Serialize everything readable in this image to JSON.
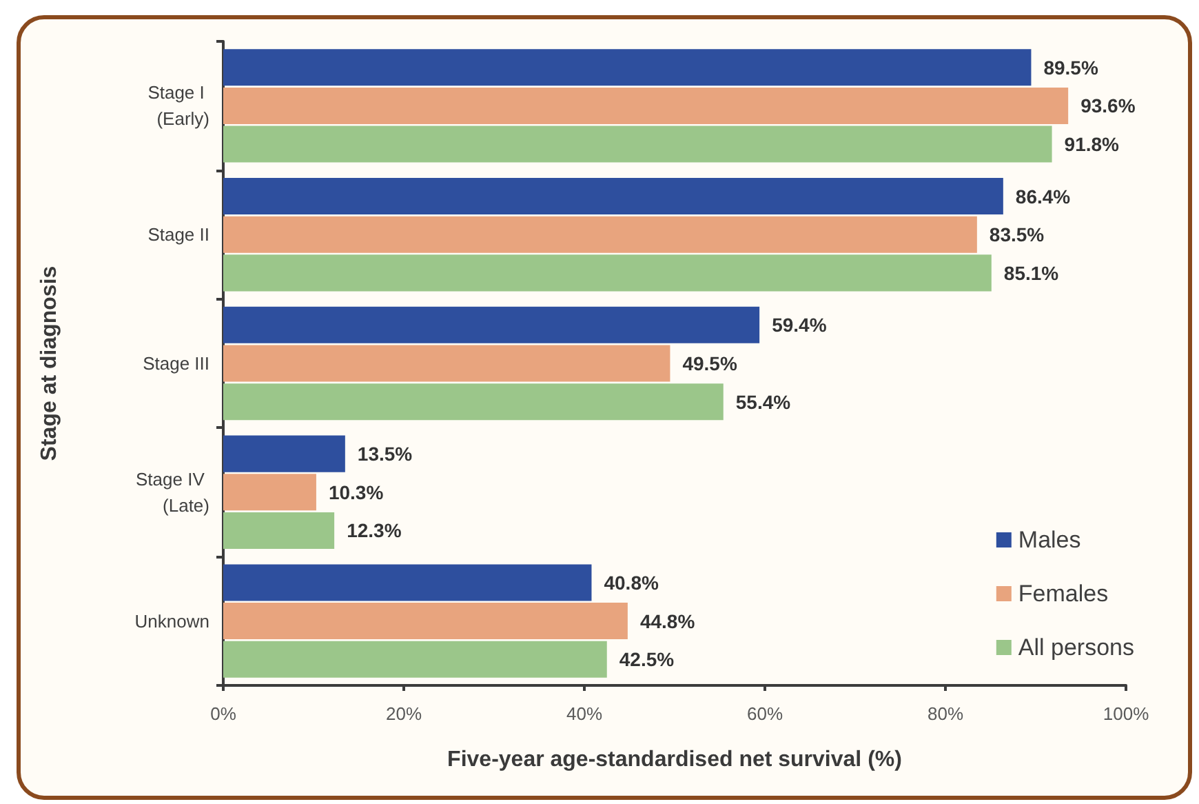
{
  "chart_data": {
    "type": "bar",
    "orientation": "horizontal",
    "xlabel": "Five-year age-standardised net survival (%)",
    "ylabel": "Stage at diagnosis",
    "categories": [
      "Stage I (Early)",
      "Stage II",
      "Stage III",
      "Stage IV (Late)",
      "Unknown"
    ],
    "series": [
      {
        "name": "Males",
        "color": "#2e4f9e",
        "values": [
          89.5,
          86.4,
          59.4,
          13.5,
          40.8
        ],
        "value_labels": [
          "89.5%",
          "86.4%",
          "59.4%",
          "13.5%",
          "40.8%"
        ]
      },
      {
        "name": "Females",
        "color": "#e8a47e",
        "values": [
          93.6,
          83.5,
          49.5,
          10.3,
          44.8
        ],
        "value_labels": [
          "93.6%",
          "83.5%",
          "49.5%",
          "10.3%",
          "44.8%"
        ]
      },
      {
        "name": "All persons",
        "color": "#9bc68a",
        "values": [
          91.8,
          85.1,
          55.4,
          12.3,
          42.5
        ],
        "value_labels": [
          "91.8%",
          "85.1%",
          "55.4%",
          "12.3%",
          "42.5%"
        ]
      }
    ],
    "xlim": [
      0,
      100
    ],
    "xticks": [
      {
        "value": 0,
        "label": "0%"
      },
      {
        "value": 20,
        "label": "20%"
      },
      {
        "value": 40,
        "label": "40%"
      },
      {
        "value": 60,
        "label": "60%"
      },
      {
        "value": 80,
        "label": "80%"
      },
      {
        "value": 100,
        "label": "100%"
      }
    ],
    "grid": false,
    "legend": "bottom right"
  }
}
